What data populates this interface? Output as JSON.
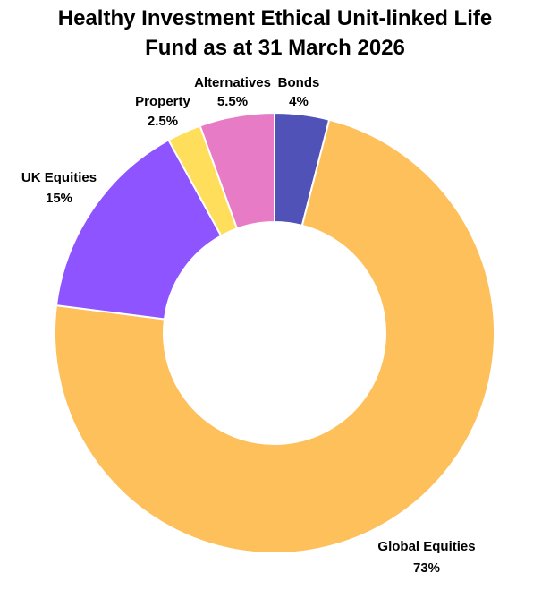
{
  "chart_data": {
    "type": "pie",
    "style": "donut",
    "title_lines": [
      "Healthy Investment Ethical Unit-linked Life",
      "Fund as at 31 March 2026"
    ],
    "slices": [
      {
        "label": "Bonds",
        "value_label": "4%",
        "value": 4,
        "color": "#5152B7"
      },
      {
        "label": "Global Equities",
        "value_label": "73%",
        "value": 73,
        "color": "#FDC05B"
      },
      {
        "label": "UK Equities",
        "value_label": "15%",
        "value": 15,
        "color": "#8E54FF"
      },
      {
        "label": "Property",
        "value_label": "2.5%",
        "value": 2.5,
        "color": "#FFDE5B"
      },
      {
        "label": "Alternatives",
        "value_label": "5.5%",
        "value": 5.5,
        "color": "#E87BC6"
      }
    ],
    "start_angle_deg": 0,
    "direction": "clockwise",
    "legend": "none"
  }
}
